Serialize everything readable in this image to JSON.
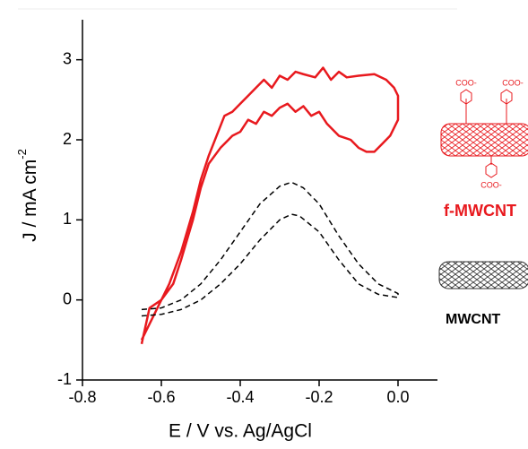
{
  "chart_data": {
    "type": "line",
    "x_label": "E / V vs. Ag/AgCl",
    "y_label": "J / mA cm",
    "y_label_superscript": "-2",
    "xlim": [
      -0.8,
      0.1
    ],
    "ylim": [
      -1,
      3.5
    ],
    "xticks": [
      -0.8,
      -0.6,
      -0.4,
      -0.2,
      {
        "value": 0,
        "label": "0.0"
      }
    ],
    "yticks": [
      -1,
      0,
      1,
      2,
      3
    ],
    "annotations": [
      "COO-",
      "COO-",
      "COO-"
    ],
    "series": [
      {
        "name": "f-MWCNT",
        "color": "#e8191e",
        "dash": false,
        "x": [
          -0.65,
          -0.63,
          -0.6,
          -0.57,
          -0.55,
          -0.52,
          -0.5,
          -0.48,
          -0.45,
          -0.42,
          -0.4,
          -0.38,
          -0.36,
          -0.34,
          -0.32,
          -0.3,
          -0.28,
          -0.26,
          -0.24,
          -0.22,
          -0.2,
          -0.18,
          -0.15,
          -0.12,
          -0.1,
          -0.08,
          -0.06,
          -0.04,
          -0.02,
          0.0,
          0.0,
          -0.01,
          -0.03,
          -0.06,
          -0.1,
          -0.13,
          -0.15,
          -0.17,
          -0.19,
          -0.21,
          -0.24,
          -0.26,
          -0.28,
          -0.3,
          -0.32,
          -0.34,
          -0.36,
          -0.38,
          -0.4,
          -0.42,
          -0.44,
          -0.46,
          -0.48,
          -0.5,
          -0.52,
          -0.55,
          -0.58,
          -0.62,
          -0.65
        ],
        "values": [
          -0.55,
          -0.1,
          0.0,
          0.2,
          0.5,
          1.0,
          1.4,
          1.7,
          1.9,
          2.05,
          2.1,
          2.25,
          2.2,
          2.35,
          2.3,
          2.4,
          2.45,
          2.35,
          2.42,
          2.3,
          2.35,
          2.2,
          2.05,
          2.0,
          1.9,
          1.85,
          1.85,
          1.95,
          2.05,
          2.25,
          2.55,
          2.65,
          2.75,
          2.82,
          2.8,
          2.78,
          2.85,
          2.75,
          2.9,
          2.78,
          2.82,
          2.85,
          2.75,
          2.8,
          2.65,
          2.75,
          2.65,
          2.55,
          2.45,
          2.35,
          2.3,
          2.05,
          1.8,
          1.5,
          1.1,
          0.6,
          0.2,
          -0.2,
          -0.5
        ]
      },
      {
        "name": "MWCNT",
        "color": "#000000",
        "dash": true,
        "x": [
          -0.65,
          -0.6,
          -0.55,
          -0.5,
          -0.45,
          -0.4,
          -0.35,
          -0.3,
          -0.27,
          -0.24,
          -0.2,
          -0.15,
          -0.1,
          -0.05,
          0.0,
          0.0,
          -0.05,
          -0.1,
          -0.15,
          -0.2,
          -0.25,
          -0.27,
          -0.3,
          -0.35,
          -0.4,
          -0.45,
          -0.5,
          -0.55,
          -0.6,
          -0.65
        ],
        "values": [
          -0.12,
          -0.1,
          0.0,
          0.2,
          0.5,
          0.85,
          1.2,
          1.42,
          1.47,
          1.4,
          1.2,
          0.8,
          0.45,
          0.2,
          0.08,
          0.03,
          0.07,
          0.2,
          0.5,
          0.85,
          1.05,
          1.07,
          1.0,
          0.75,
          0.45,
          0.2,
          0.0,
          -0.12,
          -0.18,
          -0.2
        ]
      }
    ]
  }
}
